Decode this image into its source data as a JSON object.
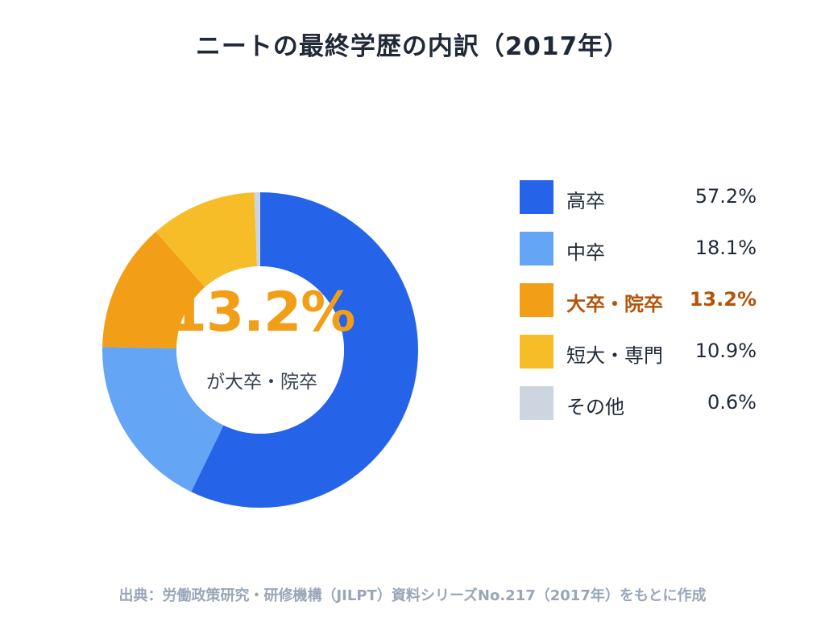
{
  "title": "ニートの最終学歴の内訳（2017年）",
  "center_value": "13.2%",
  "center_caption": "が大卒・院卒",
  "footer": "出典：労働政策研究・研修機構（JILPT）資料シリーズNo.217（2017年）をもとに作成",
  "legend": [
    {
      "label": "高卒",
      "value": "57.2%",
      "highlight": false
    },
    {
      "label": "中卒",
      "value": "18.1%",
      "highlight": false
    },
    {
      "label": "大卒・院卒",
      "value": "13.2%",
      "highlight": true
    },
    {
      "label": "短大・専門",
      "value": "10.9%",
      "highlight": false
    },
    {
      "label": "その他",
      "value": "0.6%",
      "highlight": false
    }
  ],
  "chart_data": {
    "type": "pie",
    "title": "ニートの最終学歴の内訳（2017年）",
    "categories": [
      "高卒",
      "中卒",
      "大卒・院卒",
      "短大・専門",
      "その他"
    ],
    "values": [
      57.2,
      18.1,
      13.2,
      10.9,
      0.6
    ],
    "colors": [
      "#2563e8",
      "#64a5f6",
      "#f29e16",
      "#f7bd29",
      "#cdd5e1"
    ],
    "legend": "right",
    "highlight_category": "大卒・院卒"
  }
}
